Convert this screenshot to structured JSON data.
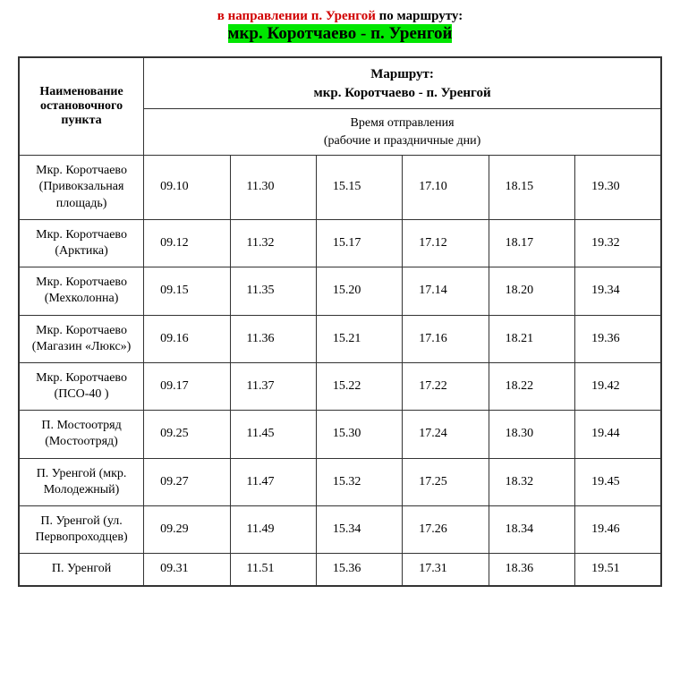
{
  "title": {
    "line1a": "в направлении п. Уренгой",
    "line1b": " по маршруту:",
    "line2": "мкр. Коротчаево - п. Уренгой"
  },
  "table": {
    "stopHeader": "Наименование остановочного пункта",
    "routeLabel": "Маршрут:",
    "routeName": "мкр. Коротчаево - п. Уренгой",
    "departHeader1": "Время отправления",
    "departHeader2": "(рабочие и праздничные дни)",
    "columnsCount": 6,
    "stopColWidthPx": 140,
    "timeColWidthPx": 97,
    "borderColor": "#333333",
    "rows": [
      {
        "stop": "Мкр. Коротчаево (Привокзальная площадь)",
        "times": [
          "09.10",
          "11.30",
          "15.15",
          "17.10",
          "18.15",
          "19.30"
        ]
      },
      {
        "stop": "Мкр. Коротчаево (Арктика)",
        "times": [
          "09.12",
          "11.32",
          "15.17",
          "17.12",
          "18.17",
          "19.32"
        ]
      },
      {
        "stop": "Мкр. Коротчаево (Мехколонна)",
        "times": [
          "09.15",
          "11.35",
          "15.20",
          "17.14",
          "18.20",
          "19.34"
        ]
      },
      {
        "stop": "Мкр. Коротчаево (Магазин «Люкс»)",
        "times": [
          "09.16",
          "11.36",
          "15.21",
          "17.16",
          "18.21",
          "19.36"
        ]
      },
      {
        "stop": "Мкр. Коротчаево (ПСО-40 )",
        "times": [
          "09.17",
          "11.37",
          "15.22",
          "17.22",
          "18.22",
          "19.42"
        ]
      },
      {
        "stop": "П. Мостоотряд (Мостоотряд)",
        "times": [
          "09.25",
          "11.45",
          "15.30",
          "17.24",
          "18.30",
          "19.44"
        ]
      },
      {
        "stop": "П. Уренгой (мкр. Молодежный)",
        "times": [
          "09.27",
          "11.47",
          "15.32",
          "17.25",
          "18.32",
          "19.45"
        ]
      },
      {
        "stop": "П. Уренгой (ул. Первопроходцев)",
        "times": [
          "09.29",
          "11.49",
          "15.34",
          "17.26",
          "18.34",
          "19.46"
        ]
      },
      {
        "stop": "П. Уренгой",
        "times": [
          "09.31",
          "11.51",
          "15.36",
          "17.31",
          "18.36",
          "19.51"
        ]
      }
    ]
  },
  "style": {
    "bodyFont": "Times New Roman",
    "accentRed": "#d10000",
    "highlightGreen": "#00e600",
    "background": "#ffffff"
  }
}
